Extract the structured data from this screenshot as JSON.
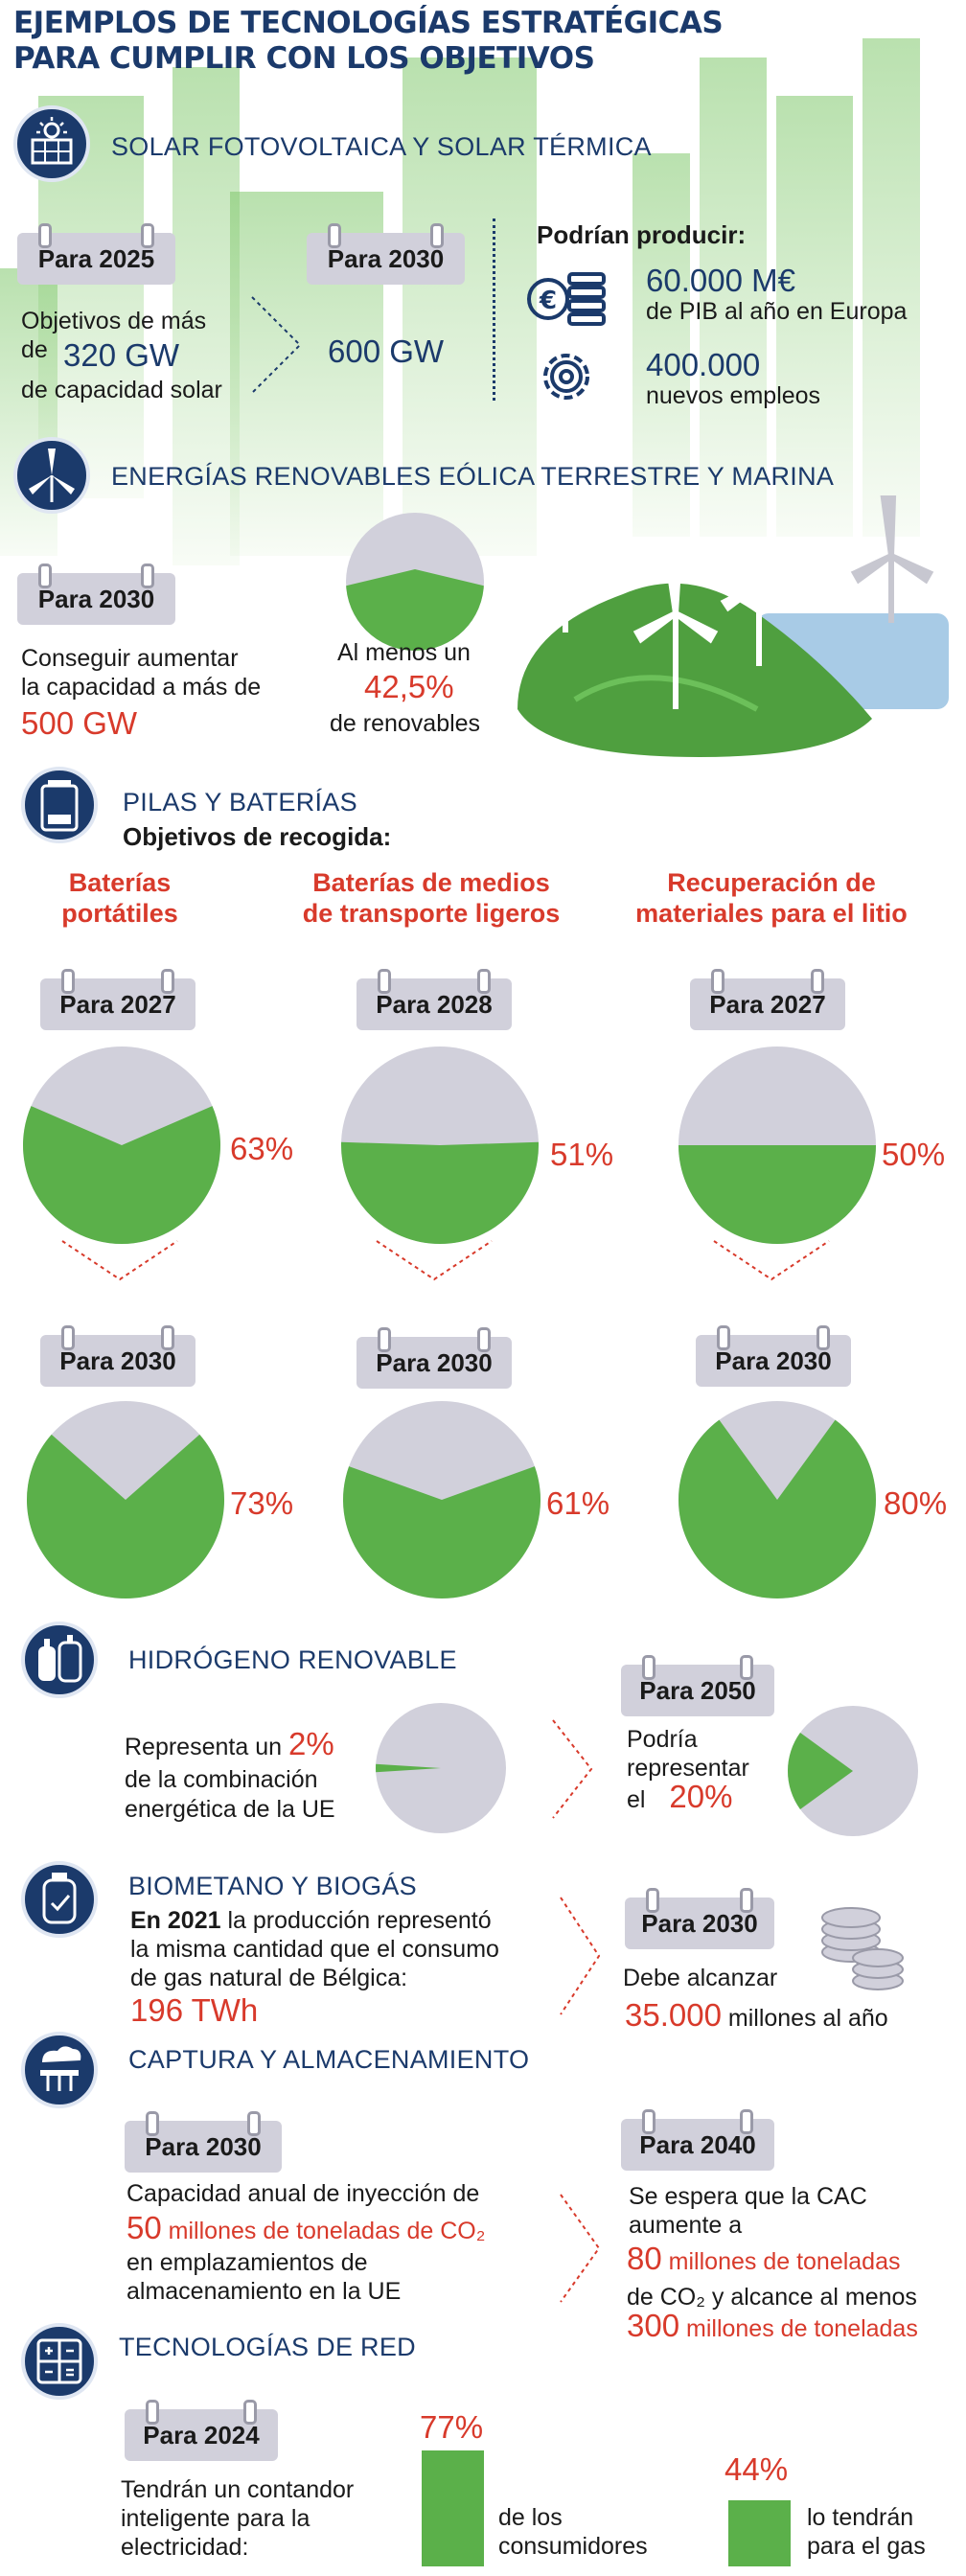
{
  "title": [
    "EJEMPLOS DE TECNOLOGÍAS ESTRATÉGICAS",
    "PARA CUMPLIR CON LOS OBJETIVOS"
  ],
  "solar": {
    "title": "SOLAR FOTOVOLTAICA Y SOLAR TÉRMICA",
    "cal1": "Para 2025",
    "cal2": "Para 2030",
    "text1a": "Objetivos de más",
    "text1b": "de",
    "value1": "320 GW",
    "text1c": "de capacidad solar",
    "value2": "600 GW",
    "could": "Podrían producir:",
    "pib_value": "60.000 M€",
    "pib_text": "de PIB al año en Europa",
    "jobs_value": "400.000",
    "jobs_text": "nuevos empleos",
    "icon1": "coins-icon",
    "icon2": "gear-icon"
  },
  "wind": {
    "title": "ENERGÍAS RENOVABLES EÓLICA TERRESTRE Y MARINA",
    "cal": "Para 2030",
    "text1": "Conseguir aumentar",
    "text2": "la capacidad a más de",
    "value": "500 GW",
    "pie_text1": "Al menos un",
    "pie_value": "42,5%",
    "pie_text2": "de renovables",
    "pie_fraction": 0.425
  },
  "batteries": {
    "title": "PILAS Y BATERÍAS",
    "subtitle": "Objetivos de recogida:",
    "columns": [
      {
        "head": [
          "Baterías",
          "portátiles"
        ],
        "cal1": "Para 2027",
        "pct1": "63%",
        "v1": 0.63,
        "cal2": "Para 2030",
        "pct2": "73%",
        "v2": 0.73
      },
      {
        "head": [
          "Baterías de medios",
          "de transporte ligeros"
        ],
        "cal1": "Para 2028",
        "pct1": "51%",
        "v1": 0.51,
        "cal2": "Para 2030",
        "pct2": "61%",
        "v2": 0.61
      },
      {
        "head": [
          "Recuperación de",
          "materiales para el litio"
        ],
        "cal1": "Para 2027",
        "pct1": "50%",
        "v1": 0.5,
        "cal2": "Para 2030",
        "pct2": "80%",
        "v2": 0.8
      }
    ]
  },
  "hydrogen": {
    "title": "HIDRÓGENO RENOVABLE",
    "text1": "Representa un",
    "value1": "2%",
    "text2": "de la combinación",
    "text3": "energética de la UE",
    "v1": 0.02,
    "cal": "Para 2050",
    "text4": "Podría",
    "text5": "representar",
    "text6": "el",
    "value2": "20%",
    "v2": 0.2
  },
  "biomethane": {
    "title": "BIOMETANO Y BIOGÁS",
    "year": "En 2021",
    "text1": "la producción representó",
    "text2": "la misma cantidad que el consumo",
    "text3": "de gas natural de Bélgica:",
    "value1": "196 TWh",
    "cal": "Para 2030",
    "text4": "Debe alcanzar",
    "value2": "35.000",
    "text5": "millones al año"
  },
  "capture": {
    "title": "CAPTURA Y ALMACENAMIENTO",
    "cal1": "Para 2030",
    "text1": "Capacidad anual de inyección de",
    "value1": "50",
    "value1_unit": "millones de toneladas de CO₂",
    "text2": "en emplazamientos de",
    "text3": "almacenamiento en la UE",
    "cal2": "Para 2040",
    "text4": "Se espera que la CAC",
    "text5": "aumente a",
    "value2": "80",
    "value2_unit": "millones de toneladas",
    "text6": "de CO₂ y alcance al menos",
    "value3": "300",
    "value3_unit": "millones de toneladas"
  },
  "grid": {
    "title": "TECNOLOGÍAS DE RED",
    "cal": "Para 2024",
    "text1": "Tendrán un contandor",
    "text2": "inteligente para la",
    "text3": "electricidad:",
    "bar1_value": "77%",
    "bar1_label1": "de los",
    "bar1_label2": "consumidores",
    "bar1_fraction": 0.77,
    "bar2_value": "44%",
    "bar2_label1": "lo tendrán",
    "bar2_label2": "para el gas",
    "bar2_fraction": 0.44
  },
  "colors": {
    "navy": "#1b3a6b",
    "red": "#d83a2b",
    "green": "#5bb04a",
    "grey": "#d1d0db"
  }
}
